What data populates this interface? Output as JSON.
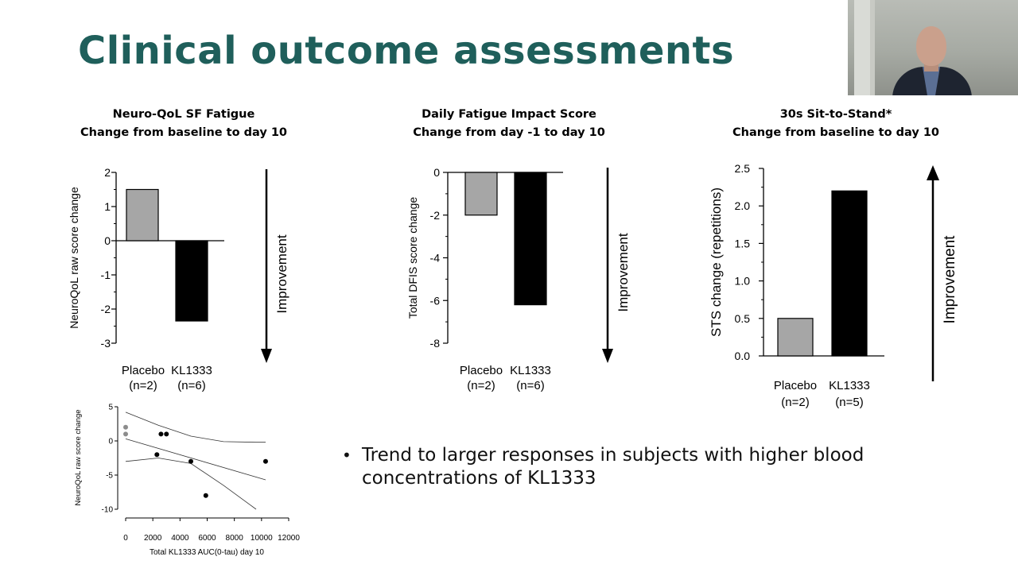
{
  "slide": {
    "title": "Clinical outcome assessments",
    "headings": [
      {
        "line1": "Neuro-QoL SF Fatigue",
        "line2": "Change from baseline to day 10"
      },
      {
        "line1": "Daily Fatigue Impact Score",
        "line2": "Change from day -1 to day 10"
      },
      {
        "line1": "30s Sit-to-Stand*",
        "line2": "Change from baseline to day 10"
      }
    ],
    "bullet": {
      "line1": "Trend to larger responses in subjects with higher blood",
      "line2": "concentrations of KL1333"
    },
    "improvement_label": "Improvement"
  },
  "colors": {
    "title": "#1f5f5b",
    "placebo": "#a6a6a6",
    "kl1333": "#000000",
    "placebo_point": "#8c8c8c"
  },
  "chart_data": [
    {
      "type": "bar",
      "ylabel": "NeuroQoL raw score change",
      "ylim": [
        -3,
        2
      ],
      "yticks": [
        2,
        1,
        0,
        -1,
        -2,
        -3
      ],
      "categories": [
        "Placebo",
        "KL1333"
      ],
      "category_n": [
        "(n=2)",
        "(n=6)"
      ],
      "values": [
        1.5,
        -2.35
      ],
      "improvement_direction": "down"
    },
    {
      "type": "bar",
      "ylabel": "Total DFIS score change",
      "ylim": [
        -8,
        0
      ],
      "yticks": [
        0,
        -2,
        -4,
        -6,
        -8
      ],
      "categories": [
        "Placebo",
        "KL1333"
      ],
      "category_n": [
        "(n=2)",
        "(n=6)"
      ],
      "values": [
        -2.0,
        -6.2
      ],
      "improvement_direction": "down"
    },
    {
      "type": "bar",
      "ylabel": "STS change (repetitions)",
      "ylim": [
        0,
        2.5
      ],
      "yticks": [
        2.5,
        2.0,
        1.5,
        1.0,
        0.5,
        0.0
      ],
      "ytick_labels": [
        "2.5",
        "2.0",
        "1.5",
        "1.0",
        "0.5",
        "0.0"
      ],
      "categories": [
        "Placebo",
        "KL1333"
      ],
      "category_n": [
        "(n=2)",
        "(n=5)"
      ],
      "values": [
        0.5,
        2.2
      ],
      "improvement_direction": "up"
    },
    {
      "type": "scatter",
      "xlabel": "Total KL1333 AUC(0-tau) day 10",
      "ylabel": "NeuroQoL raw score change",
      "xlim": [
        0,
        12000
      ],
      "ylim": [
        -10,
        5
      ],
      "xticks": [
        0,
        2000,
        4000,
        6000,
        8000,
        10000,
        12000
      ],
      "yticks": [
        5,
        0,
        -5,
        -10
      ],
      "placebo_points": [
        [
          0,
          2
        ],
        [
          0,
          1
        ]
      ],
      "kl1333_points": [
        [
          2600,
          1
        ],
        [
          3000,
          1
        ],
        [
          2300,
          -2
        ],
        [
          4800,
          -3
        ],
        [
          5900,
          -8
        ],
        [
          10300,
          -3
        ]
      ],
      "regression": {
        "x": [
          0,
          10300
        ],
        "y": [
          0.3,
          -5.7
        ]
      },
      "ci_upper": {
        "x": [
          0,
          2400,
          4800,
          7200,
          9600,
          10300
        ],
        "y": [
          4.2,
          2.3,
          0.7,
          -0.1,
          -0.2,
          -0.2
        ]
      },
      "ci_lower": {
        "x": [
          0,
          2400,
          4800,
          7200,
          9600
        ],
        "y": [
          -3.0,
          -2.5,
          -3.3,
          -6.5,
          -10.0
        ]
      }
    }
  ]
}
